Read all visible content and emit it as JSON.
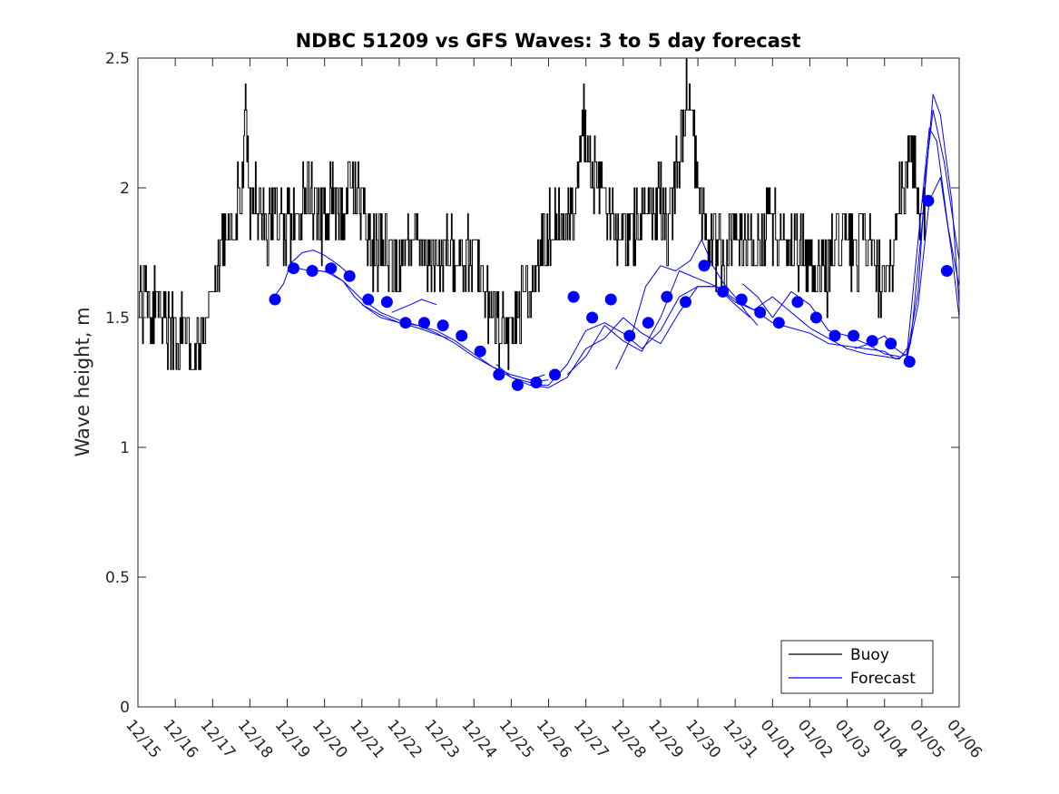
{
  "chart_data": {
    "type": "line",
    "title": "NDBC 51209 vs GFS Waves: 3 to 5 day forecast",
    "xlabel": "",
    "ylabel": "Wave height, m",
    "xlim": [
      0,
      22
    ],
    "ylim": [
      0,
      2.5
    ],
    "x_unit": "days since 12/15",
    "x_tick_values": [
      0,
      1,
      2,
      3,
      4,
      5,
      6,
      7,
      8,
      9,
      10,
      11,
      12,
      13,
      14,
      15,
      16,
      17,
      18,
      19,
      20,
      21,
      22
    ],
    "x_tick_labels": [
      "12/15",
      "12/16",
      "12/17",
      "12/18",
      "12/19",
      "12/20",
      "12/21",
      "12/22",
      "12/23",
      "12/24",
      "12/25",
      "12/26",
      "12/27",
      "12/28",
      "12/29",
      "12/30",
      "12/31",
      "01/01",
      "01/02",
      "01/03",
      "01/04",
      "01/05",
      "01/06"
    ],
    "y_tick_values": [
      0,
      0.5,
      1,
      1.5,
      2,
      2.5
    ],
    "y_tick_labels": [
      "0",
      "0.5",
      "1",
      "1.5",
      "2",
      "2.5"
    ],
    "legend": {
      "position": "bottom-right",
      "entries": [
        "Buoy",
        "Forecast"
      ]
    },
    "colors": {
      "buoy": "#000000",
      "forecast": "#0000ff",
      "axes": "#262626"
    },
    "series": [
      {
        "name": "Buoy",
        "kind": "line",
        "color": "#000000",
        "anchors": {
          "x": [
            0,
            0.2,
            0.4,
            0.5,
            0.6,
            0.8,
            1.0,
            1.2,
            1.4,
            1.5,
            1.7,
            1.8,
            2.0,
            2.2,
            2.4,
            2.6,
            2.8,
            2.85,
            3.0,
            3.2,
            3.5,
            3.8,
            4.0,
            4.3,
            4.6,
            4.9,
            5.2,
            5.5,
            5.7,
            6.0,
            6.3,
            6.6,
            6.9,
            7.2,
            7.5,
            7.8,
            8.1,
            8.4,
            8.7,
            9.0,
            9.3,
            9.5,
            9.7,
            10.0,
            10.2,
            10.5,
            10.8,
            11.0,
            11.3,
            11.6,
            11.8,
            11.9,
            12.1,
            12.4,
            12.7,
            13.0,
            13.3,
            13.6,
            13.9,
            14.2,
            14.5,
            14.7,
            14.8,
            14.9,
            15.1,
            15.4,
            15.7,
            16.0,
            16.3,
            16.6,
            16.9,
            17.2,
            17.5,
            17.8,
            18.1,
            18.4,
            18.6,
            18.9,
            19.2,
            19.5,
            19.8,
            20.0,
            20.2,
            20.4,
            20.6,
            20.8,
            20.9,
            21.0,
            21.1
          ],
          "y": [
            1.55,
            1.6,
            1.5,
            1.65,
            1.5,
            1.45,
            1.4,
            1.45,
            1.4,
            1.35,
            1.4,
            1.45,
            1.55,
            1.7,
            1.8,
            1.9,
            2.0,
            2.4,
            1.9,
            1.95,
            1.85,
            1.9,
            1.85,
            1.9,
            1.95,
            1.85,
            1.95,
            1.9,
            2.0,
            1.9,
            1.75,
            1.8,
            1.7,
            1.75,
            1.8,
            1.7,
            1.75,
            1.8,
            1.7,
            1.75,
            1.6,
            1.5,
            1.45,
            1.45,
            1.55,
            1.6,
            1.75,
            1.85,
            1.85,
            1.9,
            2.1,
            2.35,
            2.1,
            1.95,
            1.9,
            1.8,
            1.85,
            1.9,
            1.95,
            1.85,
            2.1,
            2.4,
            2.35,
            2.2,
            1.9,
            1.8,
            1.75,
            1.8,
            1.85,
            1.75,
            1.9,
            1.8,
            1.8,
            1.75,
            1.7,
            1.65,
            1.75,
            1.8,
            1.75,
            1.8,
            1.65,
            1.55,
            1.7,
            2.0,
            2.05,
            2.15,
            1.95,
            1.85,
            1.95
          ]
        }
      },
      {
        "name": "Forecast",
        "kind": "lines",
        "color": "#0000ff",
        "lines": [
          {
            "x": [
              3.6,
              3.9,
              4.1,
              4.4,
              4.7,
              5.0,
              5.4,
              5.7
            ],
            "y": [
              1.57,
              1.63,
              1.71,
              1.75,
              1.76,
              1.74,
              1.7,
              1.66
            ]
          },
          {
            "x": [
              4.0,
              4.3,
              4.6,
              4.9,
              5.2,
              5.5,
              5.8,
              6.1,
              6.5,
              7.0,
              7.5,
              7.9,
              8.3
            ],
            "y": [
              1.68,
              1.69,
              1.68,
              1.68,
              1.67,
              1.64,
              1.58,
              1.54,
              1.5,
              1.48,
              1.46,
              1.44,
              1.42
            ]
          },
          {
            "x": [
              5.0,
              5.5,
              6.0,
              6.5,
              7.0,
              7.5,
              8.0,
              8.5,
              9.0,
              9.5,
              10.0,
              10.5,
              10.9
            ],
            "y": [
              1.68,
              1.64,
              1.57,
              1.52,
              1.49,
              1.47,
              1.45,
              1.41,
              1.36,
              1.31,
              1.28,
              1.26,
              1.28
            ]
          },
          {
            "x": [
              6.0,
              6.5,
              7.0,
              7.5,
              8.0,
              8.5,
              9.0,
              9.5,
              10.0,
              10.5,
              11.0
            ],
            "y": [
              1.55,
              1.51,
              1.48,
              1.47,
              1.44,
              1.4,
              1.35,
              1.31,
              1.27,
              1.25,
              1.26
            ]
          },
          {
            "x": [
              6.8,
              7.3,
              7.6,
              8.0
            ],
            "y": [
              1.52,
              1.55,
              1.57,
              1.55
            ]
          },
          {
            "x": [
              9.6,
              10.0,
              10.5,
              11.0,
              11.5,
              12.0,
              12.5,
              13.0,
              13.5,
              14.0,
              14.5,
              15.0,
              15.5,
              16.0,
              16.4
            ],
            "y": [
              1.32,
              1.27,
              1.24,
              1.24,
              1.32,
              1.45,
              1.48,
              1.44,
              1.38,
              1.45,
              1.58,
              1.62,
              1.62,
              1.55,
              1.5
            ]
          },
          {
            "x": [
              10.5,
              11.0,
              11.5,
              12.0,
              12.5,
              13.0,
              13.5,
              14.0,
              14.5,
              15.0,
              15.5,
              16.0,
              16.5,
              17.0,
              17.5,
              18.0,
              18.5,
              19.0,
              19.5,
              20.0
            ],
            "y": [
              1.24,
              1.23,
              1.27,
              1.38,
              1.42,
              1.5,
              1.44,
              1.4,
              1.52,
              1.62,
              1.62,
              1.57,
              1.53,
              1.48,
              1.46,
              1.44,
              1.4,
              1.39,
              1.38,
              1.37
            ]
          },
          {
            "x": [
              11.5,
              12.0,
              12.5,
              13.0,
              13.5,
              14.0,
              14.5,
              15.0,
              15.5,
              16.0,
              16.5,
              17.0,
              17.5,
              18.0,
              18.5,
              19.0,
              19.5,
              20.0,
              20.4
            ],
            "y": [
              1.28,
              1.35,
              1.47,
              1.41,
              1.37,
              1.5,
              1.68,
              1.65,
              1.62,
              1.56,
              1.53,
              1.58,
              1.52,
              1.46,
              1.42,
              1.38,
              1.36,
              1.35,
              1.34
            ]
          },
          {
            "x": [
              12.8,
              13.2,
              13.6,
              14.0,
              14.4,
              14.8,
              15.1,
              15.4,
              15.7,
              16.0,
              16.3,
              16.6
            ],
            "y": [
              1.3,
              1.42,
              1.62,
              1.7,
              1.68,
              1.72,
              1.8,
              1.7,
              1.63,
              1.58,
              1.52,
              1.47
            ]
          },
          {
            "x": [
              16.2,
              16.6,
              17.0,
              17.5,
              18.0,
              18.5,
              19.0,
              19.5,
              20.0,
              20.4
            ],
            "y": [
              1.63,
              1.58,
              1.5,
              1.6,
              1.55,
              1.45,
              1.43,
              1.4,
              1.36,
              1.35
            ]
          },
          {
            "x": [
              19.2,
              19.6,
              20.0,
              20.3,
              20.6,
              20.9,
              21.1,
              21.3,
              21.6,
              22.0
            ],
            "y": [
              1.38,
              1.4,
              1.43,
              1.38,
              1.35,
              1.6,
              2.05,
              2.3,
              2.1,
              1.72
            ]
          },
          {
            "x": [
              20.0,
              20.3,
              20.6,
              20.9,
              21.2,
              21.4,
              21.7,
              22.0
            ],
            "y": [
              1.37,
              1.34,
              1.36,
              1.8,
              2.23,
              2.18,
              1.85,
              1.62
            ]
          },
          {
            "x": [
              20.4,
              20.7,
              21.0,
              21.3,
              21.5,
              21.8,
              22.0
            ],
            "y": [
              1.34,
              1.4,
              1.85,
              2.36,
              2.28,
              1.95,
              1.55
            ]
          },
          {
            "x": [
              20.6,
              20.9,
              21.2,
              21.5,
              21.8,
              22.0
            ],
            "y": [
              1.34,
              1.55,
              1.95,
              2.04,
              1.75,
              1.5
            ]
          }
        ],
        "points": {
          "x": [
            3.67,
            4.17,
            4.67,
            5.17,
            5.67,
            6.17,
            6.67,
            7.17,
            7.67,
            8.17,
            8.67,
            9.17,
            9.67,
            10.17,
            10.67,
            11.17,
            11.67,
            12.17,
            12.67,
            13.17,
            13.67,
            14.17,
            14.67,
            15.17,
            15.67,
            16.17,
            16.67,
            17.17,
            17.67,
            18.17,
            18.67,
            19.17,
            19.67,
            20.17,
            20.67,
            21.17,
            21.67
          ],
          "y": [
            1.57,
            1.69,
            1.68,
            1.69,
            1.66,
            1.57,
            1.56,
            1.48,
            1.48,
            1.47,
            1.43,
            1.37,
            1.28,
            1.24,
            1.25,
            1.28,
            1.58,
            1.5,
            1.57,
            1.43,
            1.48,
            1.58,
            1.56,
            1.7,
            1.6,
            1.57,
            1.52,
            1.48,
            1.56,
            1.5,
            1.43,
            1.43,
            1.41,
            1.4,
            1.33,
            1.95,
            1.68
          ]
        }
      }
    ]
  }
}
